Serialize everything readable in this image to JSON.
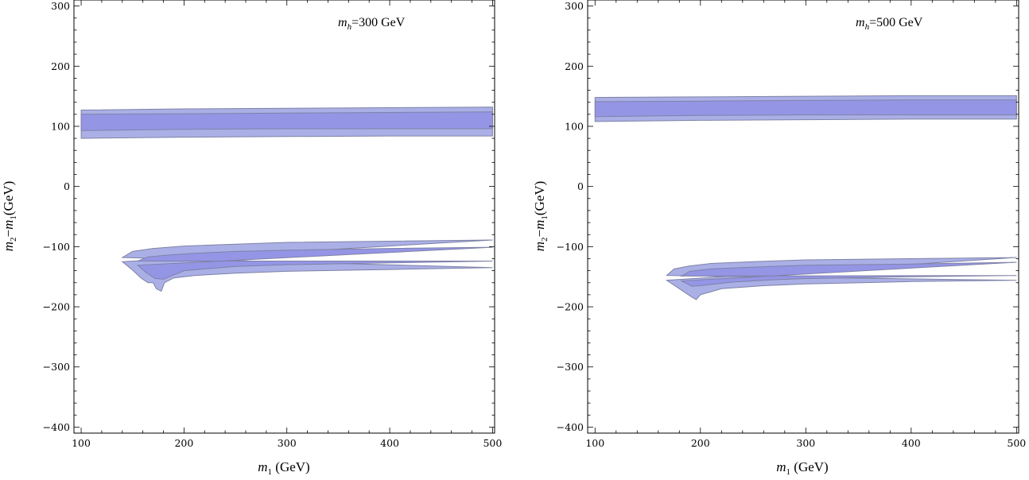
{
  "chart_data": [
    {
      "type": "area",
      "annotation": {
        "symbol": "m",
        "sub": "h",
        "rest": "=300 GeV"
      },
      "xlabel": {
        "symbol": "m",
        "sub": "1",
        "rest": " (GeV)"
      },
      "ylabel": {
        "a": "m",
        "a_sub": "2",
        "op": "−",
        "b": "m",
        "b_sub": "1",
        "rest": "(GeV)"
      },
      "xlim": [
        93,
        502
      ],
      "ylim": [
        -410,
        310
      ],
      "xticks": [
        100,
        200,
        300,
        400,
        500
      ],
      "yticks": [
        -400,
        -300,
        -200,
        -100,
        0,
        100,
        200,
        300
      ],
      "bands": [
        {
          "level": "outer",
          "upper": [
            [
              100,
              127
            ],
            [
              200,
              129
            ],
            [
              300,
              130
            ],
            [
              400,
              131
            ],
            [
              500,
              132
            ]
          ],
          "lower": [
            [
              100,
              80
            ],
            [
              200,
              82
            ],
            [
              300,
              83
            ],
            [
              400,
              84
            ],
            [
              500,
              84
            ]
          ]
        },
        {
          "level": "inner",
          "upper": [
            [
              100,
              120
            ],
            [
              200,
              121
            ],
            [
              300,
              122
            ],
            [
              400,
              123
            ],
            [
              500,
              124
            ]
          ],
          "lower": [
            [
              100,
              93
            ],
            [
              200,
              95
            ],
            [
              300,
              96
            ],
            [
              400,
              96
            ],
            [
              500,
              96
            ]
          ]
        },
        {
          "level": "outer",
          "upper": [
            [
              500,
              -89
            ],
            [
              400,
              -91
            ],
            [
              300,
              -93
            ],
            [
              250,
              -96
            ],
            [
              200,
              -99
            ],
            [
              170,
              -103
            ],
            [
              150,
              -108
            ],
            [
              140,
              -118
            ]
          ],
          "lower": [
            [
              140,
              -125
            ],
            [
              150,
              -139
            ],
            [
              158,
              -152
            ],
            [
              165,
              -160
            ],
            [
              170,
              -160
            ],
            [
              173,
              -170
            ],
            [
              178,
              -174
            ],
            [
              181,
              -160
            ],
            [
              190,
              -152
            ],
            [
              210,
              -148
            ],
            [
              250,
              -144
            ],
            [
              300,
              -141
            ],
            [
              400,
              -138
            ],
            [
              500,
              -135
            ]
          ]
        },
        {
          "level": "inner",
          "upper": [
            [
              500,
              -101
            ],
            [
              400,
              -103
            ],
            [
              300,
              -106
            ],
            [
              250,
              -108
            ],
            [
              210,
              -111
            ],
            [
              185,
              -114
            ],
            [
              165,
              -117
            ],
            [
              155,
              -124
            ]
          ],
          "lower": [
            [
              155,
              -131
            ],
            [
              163,
              -143
            ],
            [
              172,
              -153
            ],
            [
              180,
              -154
            ],
            [
              200,
              -140
            ],
            [
              250,
              -133
            ],
            [
              300,
              -130
            ],
            [
              400,
              -127
            ],
            [
              500,
              -124
            ]
          ]
        }
      ]
    },
    {
      "type": "area",
      "annotation": {
        "symbol": "m",
        "sub": "h",
        "rest": "=500 GeV"
      },
      "xlabel": {
        "symbol": "m",
        "sub": "1",
        "rest": " (GeV)"
      },
      "ylabel": {
        "a": "m",
        "a_sub": "2",
        "op": "−",
        "b": "m",
        "b_sub": "1",
        "rest": "(GeV)"
      },
      "xlim": [
        93,
        502
      ],
      "ylim": [
        -410,
        310
      ],
      "xticks": [
        100,
        200,
        300,
        400,
        500
      ],
      "yticks": [
        -400,
        -300,
        -200,
        -100,
        0,
        100,
        200,
        300
      ],
      "bands": [
        {
          "level": "outer",
          "upper": [
            [
              100,
              148
            ],
            [
              200,
              149
            ],
            [
              300,
              150
            ],
            [
              400,
              151
            ],
            [
              500,
              151
            ]
          ],
          "lower": [
            [
              100,
              108
            ],
            [
              200,
              110
            ],
            [
              300,
              111
            ],
            [
              400,
              112
            ],
            [
              500,
              112
            ]
          ]
        },
        {
          "level": "inner",
          "upper": [
            [
              100,
              141
            ],
            [
              200,
              142
            ],
            [
              300,
              143
            ],
            [
              400,
              144
            ],
            [
              500,
              144
            ]
          ],
          "lower": [
            [
              100,
              116
            ],
            [
              200,
              118
            ],
            [
              300,
              119
            ],
            [
              400,
              119
            ],
            [
              500,
              119
            ]
          ]
        },
        {
          "level": "outer",
          "upper": [
            [
              500,
              -118
            ],
            [
              400,
              -120
            ],
            [
              300,
              -122
            ],
            [
              250,
              -125
            ],
            [
              210,
              -128
            ],
            [
              190,
              -132
            ],
            [
              175,
              -137
            ],
            [
              168,
              -148
            ]
          ],
          "lower": [
            [
              168,
              -156
            ],
            [
              180,
              -170
            ],
            [
              192,
              -184
            ],
            [
              196,
              -188
            ],
            [
              200,
              -180
            ],
            [
              220,
              -170
            ],
            [
              260,
              -165
            ],
            [
              300,
              -162
            ],
            [
              400,
              -158
            ],
            [
              500,
              -156
            ]
          ]
        },
        {
          "level": "inner",
          "upper": [
            [
              500,
              -126
            ],
            [
              400,
              -129
            ],
            [
              300,
              -131
            ],
            [
              250,
              -134
            ],
            [
              210,
              -137
            ],
            [
              190,
              -141
            ],
            [
              182,
              -149
            ]
          ],
          "lower": [
            [
              182,
              -157
            ],
            [
              192,
              -166
            ],
            [
              200,
              -165
            ],
            [
              230,
              -159
            ],
            [
              270,
              -155
            ],
            [
              300,
              -153
            ],
            [
              400,
              -150
            ],
            [
              500,
              -148
            ]
          ]
        }
      ]
    }
  ]
}
